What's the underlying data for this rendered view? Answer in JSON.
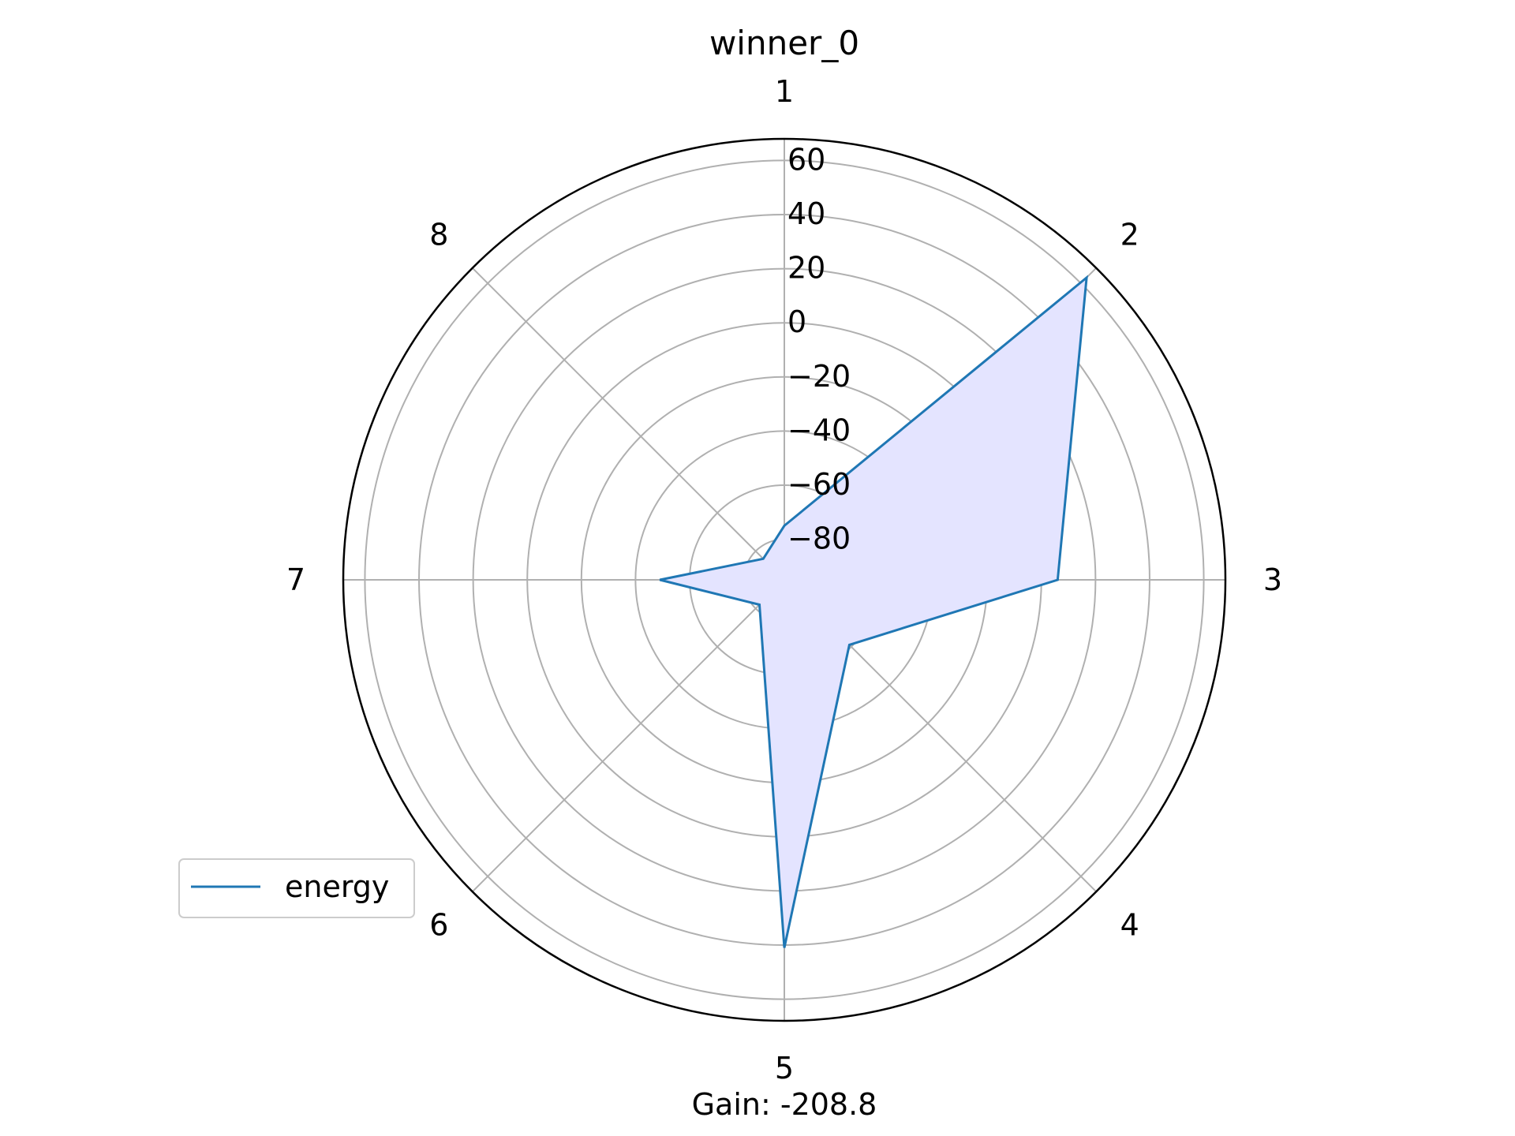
{
  "chart_data": {
    "type": "radar",
    "title": "winner_0",
    "categories": [
      "1",
      "2",
      "3",
      "4",
      "5",
      "6",
      "7",
      "8"
    ],
    "series": [
      {
        "name": "energy",
        "values": [
          -75,
          63,
          6,
          -61,
          41,
          -82,
          -49,
          -84
        ]
      }
    ],
    "rlim": [
      -95,
      68
    ],
    "r_ticks": [
      -80,
      -60,
      -40,
      -20,
      0,
      20,
      40,
      60
    ],
    "r_tick_labels": [
      "−80",
      "−60",
      "−40",
      "−20",
      "0",
      "20",
      "40",
      "60"
    ],
    "grid": true,
    "legend_position": "lower-left",
    "colors": {
      "line": "#1f77b4",
      "fill": "#e4e4ff",
      "grid": "#b0b0b0",
      "spine": "#000000"
    },
    "caption": "Gain: -208.8"
  }
}
